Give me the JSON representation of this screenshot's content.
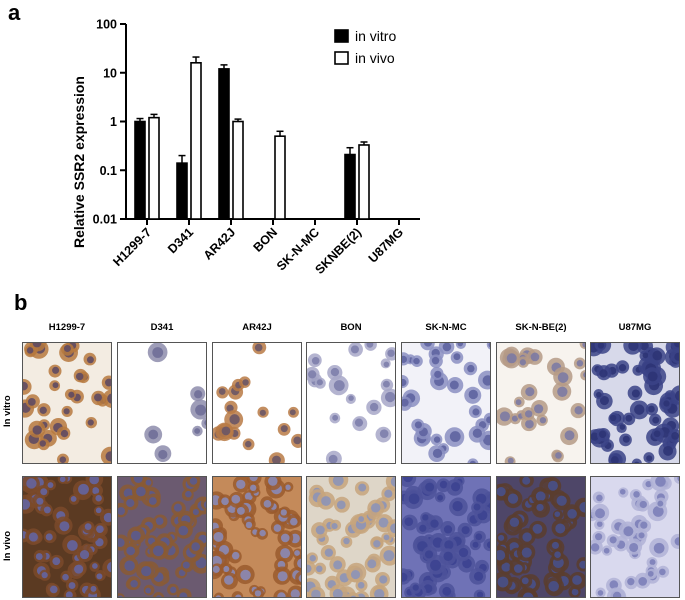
{
  "panel_a": {
    "letter": "a"
  },
  "panel_b": {
    "letter": "b",
    "columns": [
      "H1299-7",
      "D341",
      "AR42J",
      "BON",
      "SK-N-MC",
      "SK-N-BE(2)",
      "U87MG"
    ],
    "rows": [
      "In vitro",
      "In vivo"
    ],
    "tile_colors": {
      "In vitro": [
        {
          "bg": "#f3ece2",
          "cell": "#b6793e",
          "nuc": "#5f4a63",
          "density": 0.55
        },
        {
          "bg": "#ffffff",
          "cell": "#8d8cab",
          "nuc": "#6f6f98",
          "density": 0.12
        },
        {
          "bg": "#ffffff",
          "cell": "#b87a45",
          "nuc": "#6b5666",
          "density": 0.28
        },
        {
          "bg": "#ffffff",
          "cell": "#a7a7c8",
          "nuc": "#7d7eab",
          "density": 0.3
        },
        {
          "bg": "#f2f2f8",
          "cell": "#8b8fc2",
          "nuc": "#5e63a0",
          "density": 0.55
        },
        {
          "bg": "#f7f3ee",
          "cell": "#b59a86",
          "nuc": "#7c7aa3",
          "density": 0.45
        },
        {
          "bg": "#d7d9ea",
          "cell": "#3b4387",
          "nuc": "#2d3476",
          "density": 0.95
        }
      ],
      "In vivo": [
        {
          "bg": "#5b3a22",
          "cell": "#7b4a2a",
          "nuc": "#6464a0",
          "density": 0.95
        },
        {
          "bg": "#6b5a70",
          "cell": "#8a5a34",
          "nuc": "#5a5a8e",
          "density": 0.95
        },
        {
          "bg": "#c48a5a",
          "cell": "#9a5a2e",
          "nuc": "#8a8ab6",
          "density": 0.95
        },
        {
          "bg": "#ded6c8",
          "cell": "#c7a57c",
          "nuc": "#8c93b8",
          "density": 0.85
        },
        {
          "bg": "#6f72b6",
          "cell": "#4d529a",
          "nuc": "#3c4290",
          "density": 0.95
        },
        {
          "bg": "#4e4668",
          "cell": "#5b3d2e",
          "nuc": "#48508a",
          "density": 0.95
        },
        {
          "bg": "#d9d9ee",
          "cell": "#b0b2d6",
          "nuc": "#7c80b8",
          "density": 0.7
        }
      ]
    }
  },
  "chart_data": {
    "type": "bar",
    "categories": [
      "H1299-7",
      "D341",
      "AR42J",
      "BON",
      "SK-N-MC",
      "SKNBE(2)",
      "U87MG"
    ],
    "series": [
      {
        "name": "in vitro",
        "values": [
          1.0,
          0.14,
          12,
          null,
          null,
          0.21,
          null
        ],
        "errors": [
          0.15,
          0.06,
          2.5,
          null,
          null,
          0.08,
          null
        ],
        "color": "#000000"
      },
      {
        "name": "in vivo",
        "values": [
          1.2,
          16,
          1.0,
          0.5,
          null,
          0.33,
          null
        ],
        "errors": [
          0.2,
          5,
          0.12,
          0.13,
          null,
          0.05,
          null
        ],
        "color": "#ffffff"
      }
    ],
    "title": "",
    "xlabel": "",
    "ylabel": "Relative SSR2 expression",
    "yscale": "log",
    "ylim": [
      0.01,
      100
    ],
    "yticks": [
      "0.01",
      "0.1",
      "1",
      "10",
      "100"
    ],
    "legend_position": "top-right",
    "grid": false
  }
}
